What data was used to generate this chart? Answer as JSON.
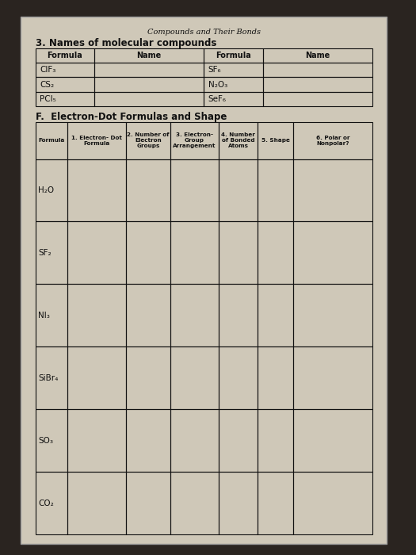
{
  "page_title": "Compounds and Their Bonds",
  "section3_title": "3. Names of molecular compounds",
  "table1_headers": [
    "Formula",
    "Name",
    "Formula",
    "Name"
  ],
  "table1_rows": [
    [
      "ClF₃",
      "",
      "SF₆",
      ""
    ],
    [
      "CS₂",
      "",
      "N₂O₃",
      ""
    ],
    [
      "PCl₅",
      "",
      "SeF₆",
      ""
    ]
  ],
  "sectionF_title": "F.  Electron-Dot Formulas and Shape",
  "table2_headers": [
    "Formula",
    "1. Electron- Dot\nFormula",
    "2. Number of\nElectron\nGroups",
    "3. Electron-\nGroup\nArrangement",
    "4. Number\nof Bonded\nAtoms",
    "5. Shape",
    "6. Polar or\nNonpolar?"
  ],
  "table2_rows": [
    [
      "H₂O",
      "",
      "",
      "",
      "",
      "",
      ""
    ],
    [
      "SF₂",
      "",
      "",
      "",
      "",
      "",
      ""
    ],
    [
      "NI₃",
      "",
      "",
      "",
      "",
      "",
      ""
    ],
    [
      "SiBr₄",
      "",
      "",
      "",
      "",
      "",
      ""
    ],
    [
      "SO₃",
      "",
      "",
      "",
      "",
      "",
      ""
    ],
    [
      "CO₂",
      "",
      "",
      "",
      "",
      "",
      ""
    ]
  ],
  "outer_bg": "#2a2420",
  "paper_color": "#cfc8b8",
  "border_color": "#111111",
  "text_color": "#111111",
  "header_fontsize": 6.5,
  "cell_fontsize": 7.5,
  "title_fontsize": 7
}
